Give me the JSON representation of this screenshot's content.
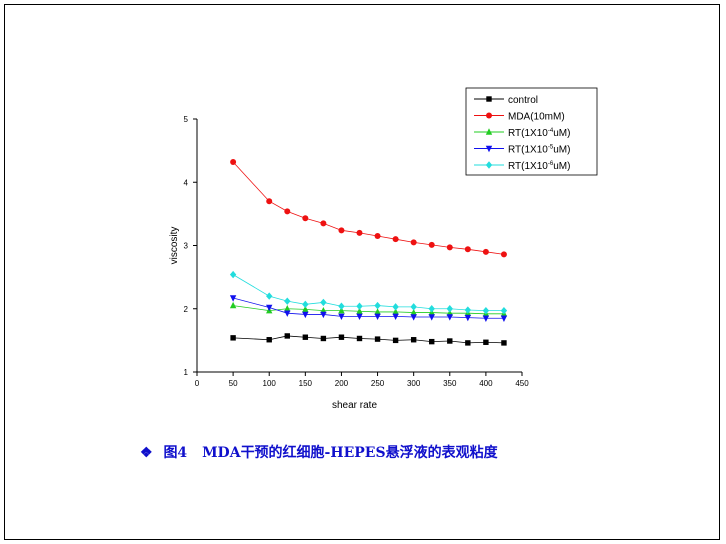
{
  "caption": {
    "bullet": "❖",
    "label": "图4",
    "text": "MDA干预的红细胞-HEPES悬浮液的表观粘度",
    "color": "#1010cc"
  },
  "chart_data": {
    "type": "line",
    "xlabel": "shear rate",
    "ylabel": "viscosity",
    "xlim": [
      0,
      450
    ],
    "ylim": [
      1,
      5
    ],
    "xticks": [
      "0",
      "50",
      "100",
      "150",
      "200",
      "250",
      "300",
      "350",
      "400",
      "450"
    ],
    "yticks": [
      "1",
      "2",
      "3",
      "4",
      "5"
    ],
    "legend_position": "top-right",
    "x": [
      50,
      100,
      125,
      150,
      175,
      200,
      225,
      250,
      275,
      300,
      325,
      350,
      375,
      400,
      425
    ],
    "series": [
      {
        "name": "control",
        "color": "#000000",
        "marker": "square",
        "values": [
          1.54,
          1.51,
          1.57,
          1.55,
          1.53,
          1.55,
          1.53,
          1.52,
          1.5,
          1.51,
          1.48,
          1.49,
          1.46,
          1.47,
          1.46
        ]
      },
      {
        "name": "MDA(10mM)",
        "color": "#ee1111",
        "marker": "circle",
        "values": [
          4.32,
          3.7,
          3.54,
          3.43,
          3.35,
          3.24,
          3.2,
          3.15,
          3.1,
          3.05,
          3.01,
          2.97,
          2.94,
          2.9,
          2.86
        ]
      },
      {
        "name": "RT(1X10⁻⁴uM)",
        "name_parts": [
          "RT(1X10",
          "-4",
          "uM)"
        ],
        "color": "#22cc22",
        "marker": "triangle-up",
        "values": [
          2.05,
          1.97,
          2.0,
          1.99,
          1.97,
          1.97,
          1.96,
          1.95,
          1.95,
          1.94,
          1.94,
          1.93,
          1.93,
          1.92,
          1.92
        ]
      },
      {
        "name": "RT(1X10⁻⁵uM)",
        "name_parts": [
          "RT(1X10",
          "-5",
          "uM)"
        ],
        "color": "#1111ee",
        "marker": "triangle-down",
        "values": [
          2.17,
          2.02,
          1.93,
          1.91,
          1.91,
          1.88,
          1.88,
          1.88,
          1.88,
          1.87,
          1.87,
          1.87,
          1.86,
          1.85,
          1.85
        ]
      },
      {
        "name": "RT(1X10⁻⁶uM)",
        "name_parts": [
          "RT(1X10",
          "-6",
          "uM)"
        ],
        "color": "#22dddd",
        "marker": "diamond",
        "values": [
          2.54,
          2.2,
          2.12,
          2.07,
          2.1,
          2.04,
          2.04,
          2.05,
          2.03,
          2.03,
          2.0,
          2.0,
          1.98,
          1.97,
          1.97
        ]
      }
    ]
  }
}
